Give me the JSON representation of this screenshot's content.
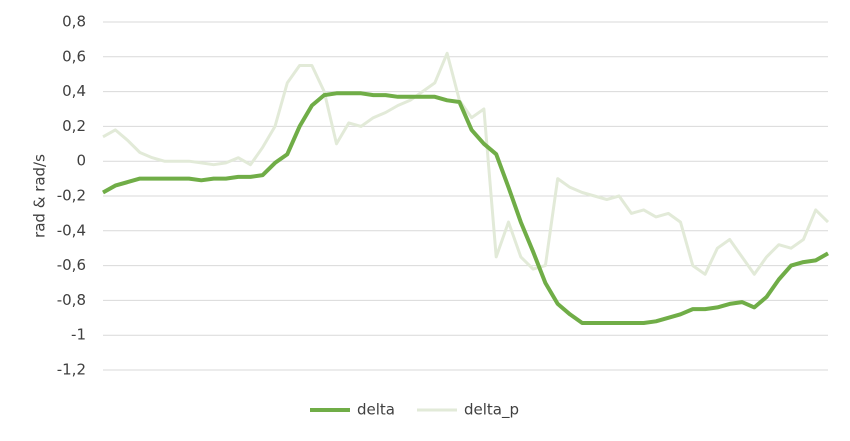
{
  "chart_data": {
    "type": "line",
    "y_label": "rad & rad/s",
    "categories": [
      null,
      null,
      null,
      null,
      null,
      null,
      null,
      null,
      null,
      null,
      null,
      null,
      null,
      null,
      null,
      null,
      null,
      null,
      null,
      null,
      null,
      null,
      null,
      null,
      null,
      null,
      null,
      null,
      null,
      null,
      null,
      null,
      null,
      null,
      null,
      null,
      null,
      null,
      null,
      null,
      null,
      null,
      null,
      null,
      null,
      null,
      null,
      null,
      null,
      null,
      null,
      null,
      null,
      null,
      null,
      null,
      null,
      null,
      null,
      null
    ],
    "series": [
      {
        "name": "delta",
        "color": "#70ad47",
        "width": 4,
        "values": [
          -0.18,
          -0.14,
          -0.12,
          -0.1,
          -0.1,
          -0.1,
          -0.1,
          -0.1,
          -0.11,
          -0.1,
          -0.1,
          -0.09,
          -0.09,
          -0.08,
          -0.01,
          0.04,
          0.2,
          0.32,
          0.38,
          0.39,
          0.39,
          0.39,
          0.38,
          0.38,
          0.37,
          0.37,
          0.37,
          0.37,
          0.35,
          0.34,
          0.18,
          0.1,
          0.04,
          -0.15,
          -0.35,
          -0.52,
          -0.7,
          -0.82,
          -0.88,
          -0.93,
          -0.93,
          -0.93,
          -0.93,
          -0.93,
          -0.93,
          -0.92,
          -0.9,
          -0.88,
          -0.85,
          -0.85,
          -0.84,
          -0.82,
          -0.81,
          -0.84,
          -0.78,
          -0.68,
          -0.6,
          -0.58,
          -0.57,
          -0.53
        ]
      },
      {
        "name": "delta_p",
        "color": "#e2ead8",
        "width": 3,
        "values": [
          0.14,
          0.18,
          0.12,
          0.05,
          0.02,
          0.0,
          0.0,
          0.0,
          -0.01,
          -0.02,
          -0.01,
          0.02,
          -0.02,
          0.08,
          0.2,
          0.45,
          0.55,
          0.55,
          0.4,
          0.1,
          0.22,
          0.2,
          0.25,
          0.28,
          0.32,
          0.35,
          0.4,
          0.45,
          0.62,
          0.35,
          0.25,
          0.3,
          -0.55,
          -0.35,
          -0.55,
          -0.62,
          -0.6,
          -0.1,
          -0.15,
          -0.18,
          -0.2,
          -0.22,
          -0.2,
          -0.3,
          -0.28,
          -0.32,
          -0.3,
          -0.35,
          -0.6,
          -0.65,
          -0.5,
          -0.45,
          -0.55,
          -0.65,
          -0.55,
          -0.48,
          -0.5,
          -0.45,
          -0.28,
          -0.35
        ]
      }
    ],
    "ylim": [
      -1.2,
      0.8
    ],
    "yticks": [
      {
        "value": -1.2,
        "label": "-1,2"
      },
      -1,
      {
        "value": -0.8,
        "label": "-0,8"
      },
      {
        "value": -0.6,
        "label": "-0,6"
      },
      {
        "value": -0.4,
        "label": "-0,4"
      },
      {
        "value": -0.2,
        "label": "-0,2"
      },
      0,
      {
        "value": 0.2,
        "label": "0,2"
      },
      {
        "value": 0.4,
        "label": "0,4"
      },
      {
        "value": 0.6,
        "label": "0,6"
      },
      {
        "value": 0.8,
        "label": "0,8"
      }
    ],
    "grid": true,
    "legend": "bottom"
  }
}
